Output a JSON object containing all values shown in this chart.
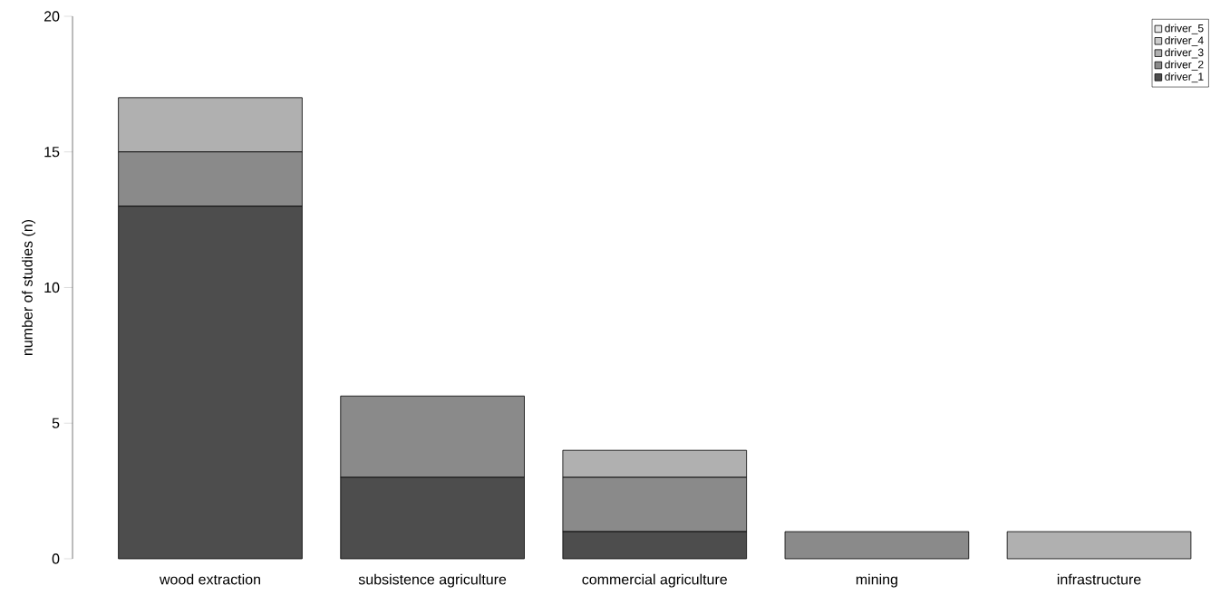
{
  "chart_data": {
    "type": "bar",
    "stacked": true,
    "ylabel": "number of studies (n)",
    "categories": [
      "wood extraction",
      "subsistence agriculture",
      "commercial agriculture",
      "mining",
      "infrastructure"
    ],
    "series": [
      {
        "name": "driver_1",
        "color": "#4d4d4d",
        "values": [
          13,
          3,
          1,
          0,
          0
        ]
      },
      {
        "name": "driver_2",
        "color": "#8a8a8a",
        "values": [
          2,
          3,
          2,
          1,
          0
        ]
      },
      {
        "name": "driver_3",
        "color": "#b0b0b0",
        "values": [
          2,
          0,
          1,
          0,
          1
        ]
      },
      {
        "name": "driver_4",
        "color": "#cccccc",
        "values": [
          0,
          0,
          0,
          0,
          0
        ]
      },
      {
        "name": "driver_5",
        "color": "#e6e6e6",
        "values": [
          0,
          0,
          0,
          0,
          0
        ]
      }
    ],
    "ylim": [
      0,
      20
    ],
    "yticks": [
      0,
      5,
      10,
      15,
      20
    ],
    "legend": "top right"
  }
}
